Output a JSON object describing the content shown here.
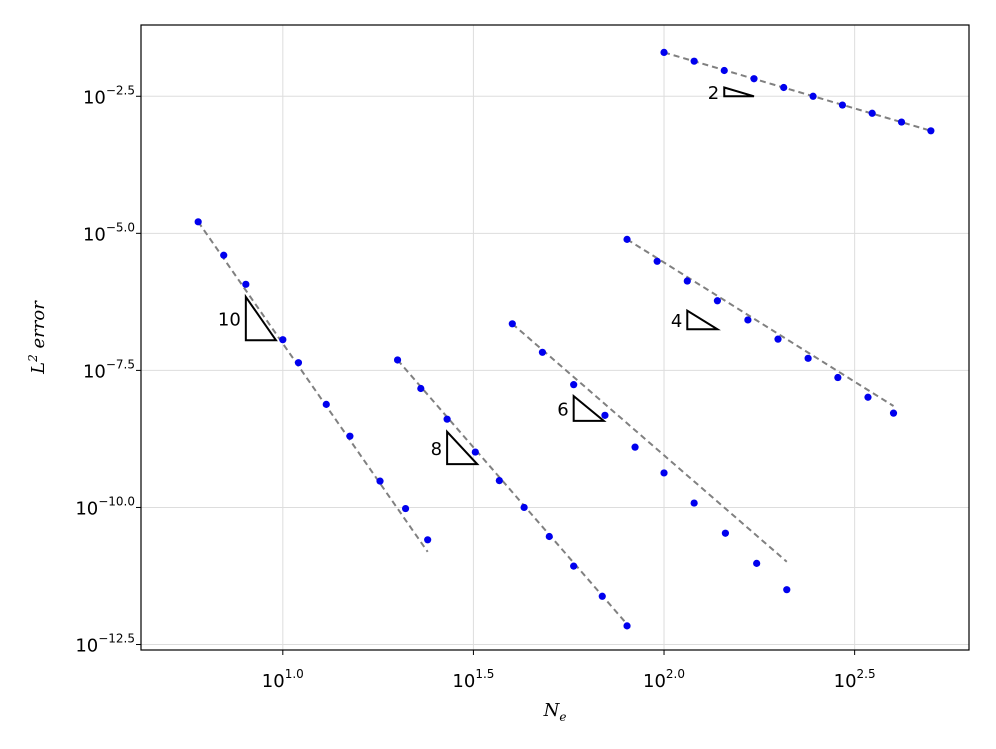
{
  "chart_data": {
    "type": "scatter",
    "title": "",
    "xscale": "log10",
    "yscale": "log10",
    "xlabel": {
      "base": "N",
      "sub": "e"
    },
    "ylabel": {
      "base": "L",
      "sup": "2",
      "rest": " error"
    },
    "xlim_log10": [
      0.628,
      2.8
    ],
    "ylim_log10": [
      -12.6,
      -1.2
    ],
    "grid": true,
    "legend": "none",
    "colors": {
      "points": "#0000ee",
      "fit_line": "#808080",
      "axes": "#000000",
      "grid": "#dddddd"
    },
    "x_ticks": [
      {
        "log10": 1.0,
        "base": "10",
        "exp": "1.0"
      },
      {
        "log10": 1.5,
        "base": "10",
        "exp": "1.5"
      },
      {
        "log10": 2.0,
        "base": "10",
        "exp": "2.0"
      },
      {
        "log10": 2.5,
        "base": "10",
        "exp": "2.5"
      }
    ],
    "y_ticks": [
      {
        "log10": -2.5,
        "base": "10",
        "exp": "−2.5"
      },
      {
        "log10": -5.0,
        "base": "10",
        "exp": "−5.0"
      },
      {
        "log10": -7.5,
        "base": "10",
        "exp": "−7.5"
      },
      {
        "log10": -10.0,
        "base": "10",
        "exp": "−10.0"
      },
      {
        "log10": -12.5,
        "base": "10",
        "exp": "−12.5"
      }
    ],
    "series": [
      {
        "order": 10,
        "log10_x": [
          0.778,
          0.845,
          0.903,
          1.0,
          1.041,
          1.114,
          1.176,
          1.255,
          1.322,
          1.38
        ],
        "log10_y": [
          -4.79,
          -5.4,
          -5.93,
          -6.94,
          -7.36,
          -8.12,
          -8.7,
          -9.52,
          -10.02,
          -10.59
        ],
        "fit_log10_x": [
          0.778,
          1.38
        ],
        "fit_log10_y": [
          -4.79,
          -10.81
        ],
        "slope_triangle": {
          "label": "10",
          "x0": 0.903,
          "x1": 0.982,
          "y_top": -6.16,
          "y_bottom": -6.95
        }
      },
      {
        "order": 8,
        "log10_x": [
          1.301,
          1.362,
          1.431,
          1.505,
          1.568,
          1.633,
          1.699,
          1.763,
          1.838,
          1.903
        ],
        "log10_y": [
          -7.31,
          -7.83,
          -8.39,
          -8.99,
          -9.51,
          -10.0,
          -10.53,
          -11.07,
          -11.62,
          -12.16
        ],
        "fit_log10_x": [
          1.301,
          1.903
        ],
        "fit_log10_y": [
          -7.31,
          -12.13
        ],
        "slope_triangle": {
          "label": "8",
          "x0": 1.431,
          "x1": 1.51,
          "y_top": -8.62,
          "y_bottom": -9.21
        }
      },
      {
        "order": 6,
        "log10_x": [
          1.602,
          1.681,
          1.763,
          1.845,
          1.924,
          2.0,
          2.079,
          2.161,
          2.243,
          2.322
        ],
        "log10_y": [
          -6.65,
          -7.17,
          -7.76,
          -8.32,
          -8.9,
          -9.37,
          -9.92,
          -10.47,
          -11.02,
          -11.5
        ],
        "fit_log10_x": [
          1.602,
          2.322
        ],
        "fit_log10_y": [
          -6.65,
          -10.99
        ],
        "slope_triangle": {
          "label": "6",
          "x0": 1.763,
          "x1": 1.842,
          "y_top": -7.97,
          "y_bottom": -8.42
        }
      },
      {
        "order": 4,
        "log10_x": [
          1.903,
          1.982,
          2.061,
          2.14,
          2.22,
          2.299,
          2.378,
          2.456,
          2.535,
          2.602
        ],
        "log10_y": [
          -5.11,
          -5.51,
          -5.87,
          -6.23,
          -6.58,
          -6.93,
          -7.28,
          -7.63,
          -7.99,
          -8.28
        ],
        "fit_log10_x": [
          1.903,
          2.602
        ],
        "fit_log10_y": [
          -5.11,
          -8.15
        ],
        "slope_triangle": {
          "label": "4",
          "x0": 2.061,
          "x1": 2.14,
          "y_top": -6.41,
          "y_bottom": -6.75
        }
      },
      {
        "order": 2,
        "log10_x": [
          2.0,
          2.079,
          2.158,
          2.236,
          2.314,
          2.391,
          2.468,
          2.546,
          2.623,
          2.7
        ],
        "log10_y": [
          -1.7,
          -1.86,
          -2.03,
          -2.18,
          -2.34,
          -2.5,
          -2.66,
          -2.81,
          -2.97,
          -3.13
        ],
        "fit_log10_x": [
          2.0,
          2.7
        ],
        "fit_log10_y": [
          -1.7,
          -3.13
        ],
        "slope_triangle": {
          "label": "2",
          "x0": 2.158,
          "x1": 2.236,
          "y_top": -2.34,
          "y_bottom": -2.5
        }
      }
    ]
  }
}
